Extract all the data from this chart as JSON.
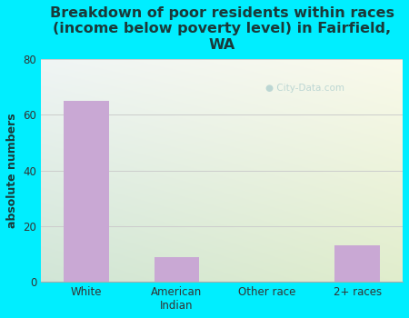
{
  "title": "Breakdown of poor residents within races\n(income below poverty level) in Fairfield,\nWA",
  "categories": [
    "White",
    "American\nIndian",
    "Other race",
    "2+ races"
  ],
  "values": [
    65,
    9,
    0,
    13
  ],
  "bar_color": "#c9a8d4",
  "ylabel": "absolute numbers",
  "ylim": [
    0,
    80
  ],
  "yticks": [
    0,
    20,
    40,
    60,
    80
  ],
  "background_color": "#00eeff",
  "plot_bg_topleft": "#dff0e8",
  "plot_bg_topright": "#e8f4f0",
  "plot_bg_bottom": "#d8eed8",
  "title_color": "#1a3a3a",
  "axis_color": "#333333",
  "ylabel_color": "#1a3a3a",
  "watermark": "City-Data.com",
  "title_fontsize": 11.5,
  "label_fontsize": 9,
  "tick_fontsize": 8.5,
  "grid_color": "#cccccc",
  "spine_color": "#aaaaaa"
}
